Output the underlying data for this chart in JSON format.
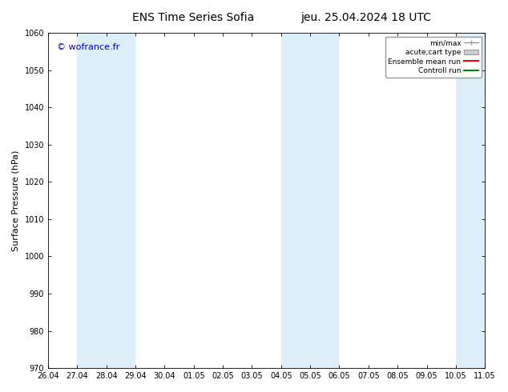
{
  "title_left": "ENS Time Series Sofia",
  "title_right": "jeu. 25.04.2024 18 UTC",
  "ylabel": "Surface Pressure (hPa)",
  "ylim": [
    970,
    1060
  ],
  "yticks": [
    970,
    980,
    990,
    1000,
    1010,
    1020,
    1030,
    1040,
    1050,
    1060
  ],
  "xtick_labels": [
    "26.04",
    "27.04",
    "28.04",
    "29.04",
    "30.04",
    "01.05",
    "02.05",
    "03.05",
    "04.05",
    "05.05",
    "06.05",
    "07.05",
    "08.05",
    "09.05",
    "10.05",
    "11.05"
  ],
  "shaded_bands": [
    {
      "xstart": 1,
      "xend": 2,
      "color": "#ddeef8"
    },
    {
      "xstart": 2,
      "xend": 3,
      "color": "#ddeef8"
    },
    {
      "xstart": 8,
      "xend": 9,
      "color": "#ddeef8"
    },
    {
      "xstart": 9,
      "xend": 10,
      "color": "#ddeef8"
    },
    {
      "xstart": 14,
      "xend": 15,
      "color": "#ddeef8"
    }
  ],
  "watermark": "© wofrance.fr",
  "watermark_color": "#0000bb",
  "legend_items": [
    {
      "label": "min/max",
      "color": "#999999",
      "type": "errorbar"
    },
    {
      "label": "acute;cart type",
      "color": "#cccccc",
      "type": "box"
    },
    {
      "label": "Ensemble mean run",
      "color": "#ff0000",
      "type": "line"
    },
    {
      "label": "Controll run",
      "color": "#008800",
      "type": "line"
    }
  ],
  "background_color": "#ffffff",
  "plot_bg_color": "#ffffff",
  "tick_fontsize": 7,
  "label_fontsize": 8,
  "title_fontsize": 10
}
